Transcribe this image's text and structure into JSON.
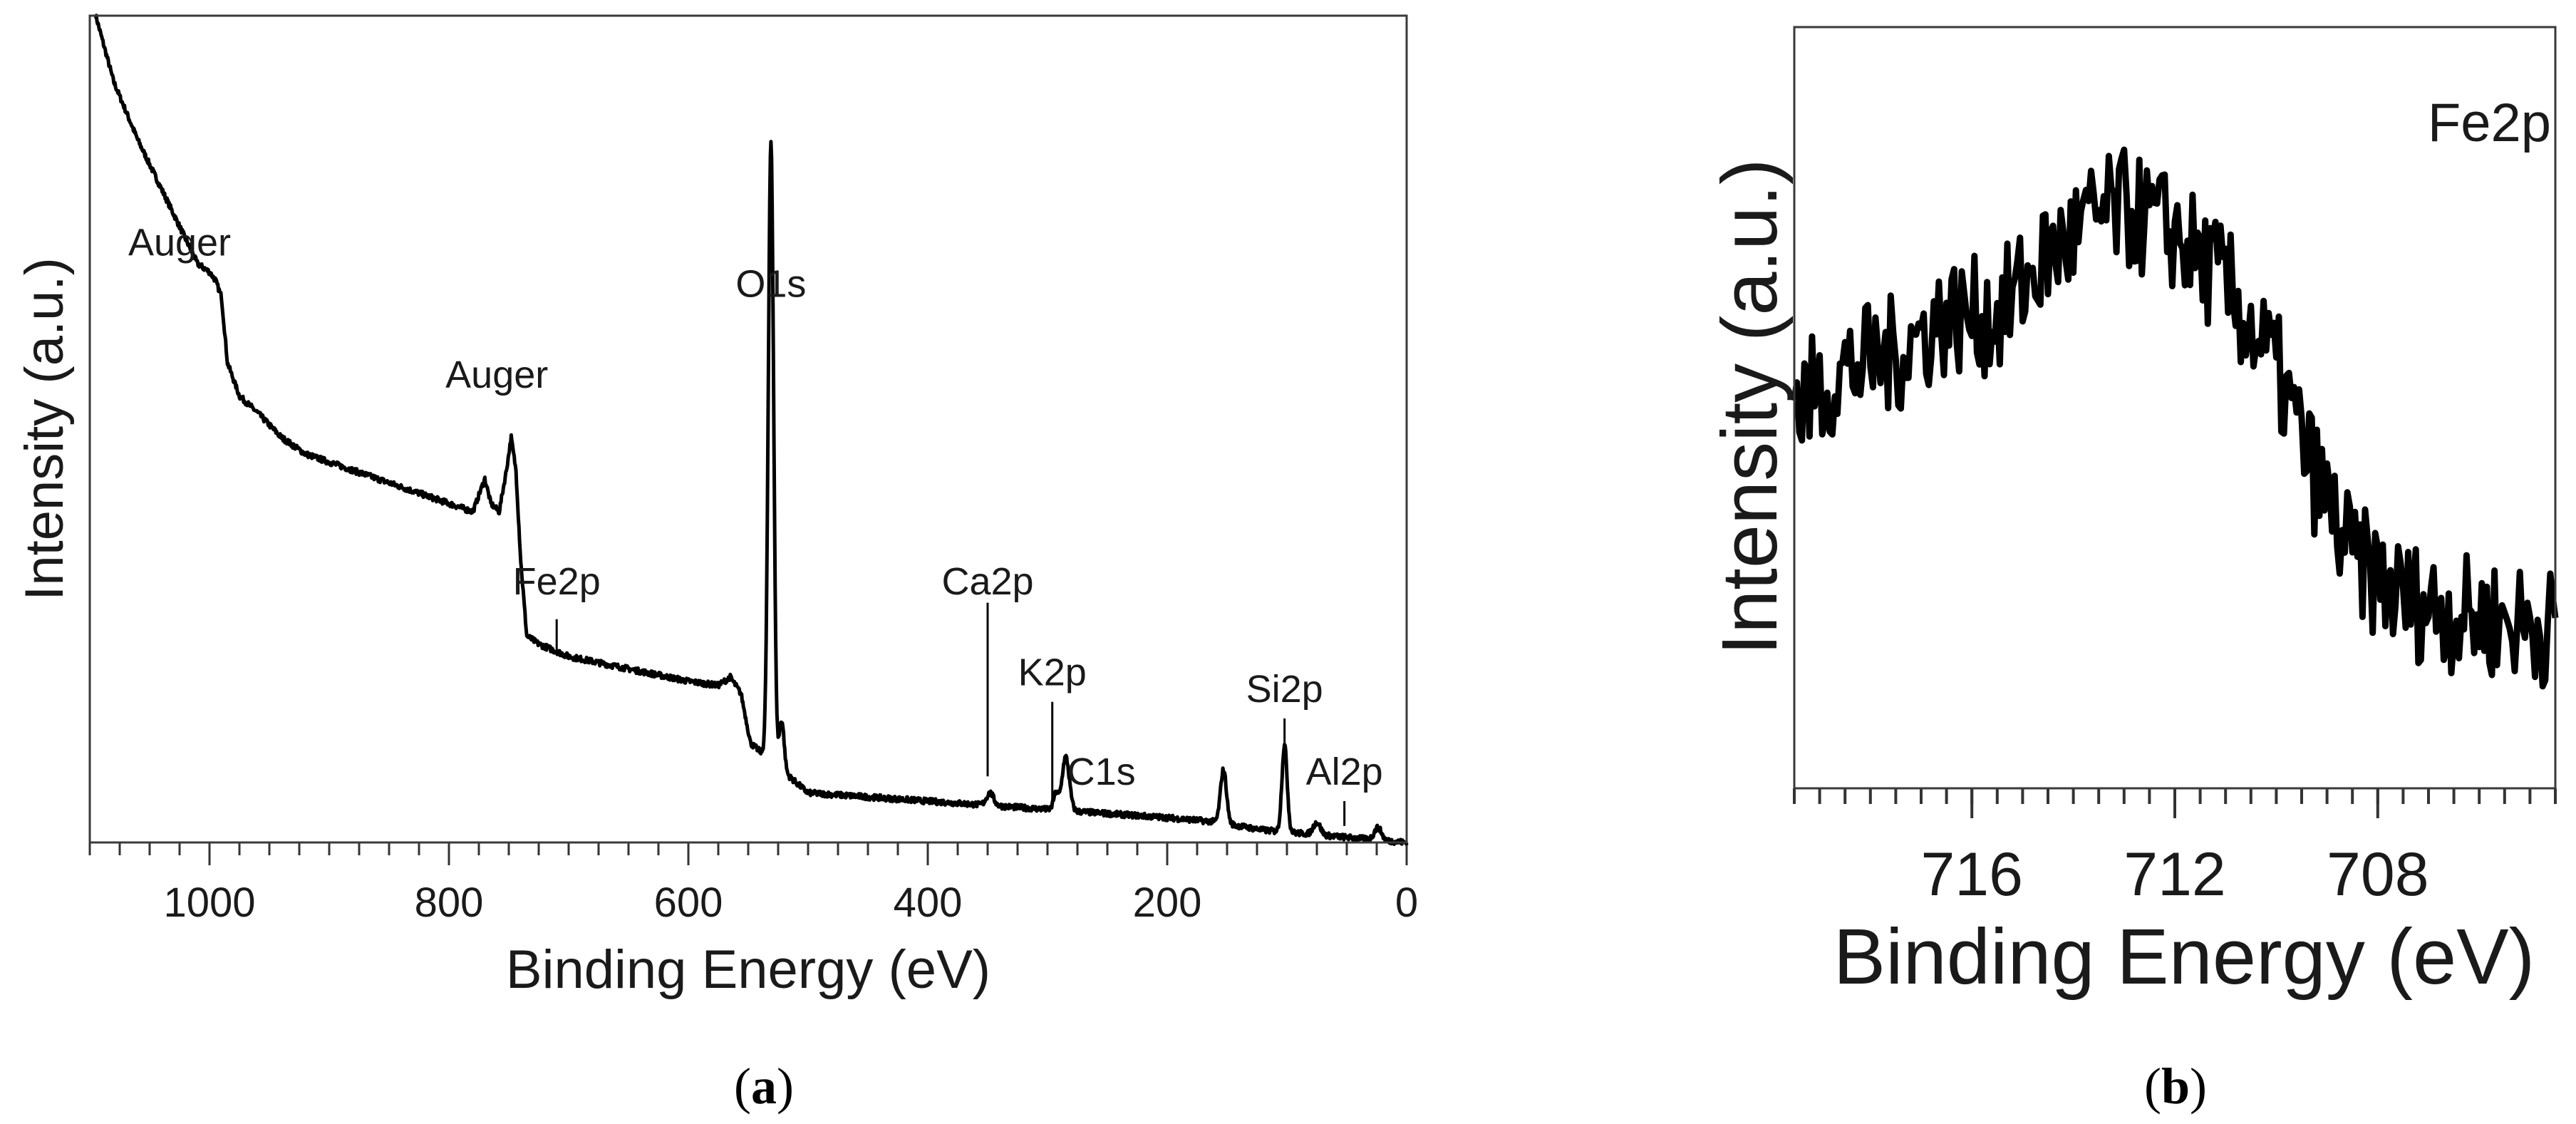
{
  "figure": {
    "caption_a": "(a)",
    "caption_b": "(b)",
    "caption_a_letter": "a",
    "caption_b_letter": "b"
  },
  "chart_data": [
    {
      "id": "a",
      "type": "line",
      "title": "",
      "xlabel": "Binding Energy (eV)",
      "ylabel": "Intensity (a.u.)",
      "xlim": [
        1100,
        0
      ],
      "ylim": [
        0,
        100
      ],
      "xticks": [
        1000,
        800,
        600,
        400,
        200,
        0
      ],
      "xtick_labels": [
        "1000",
        "800",
        "600",
        "400",
        "200",
        "0"
      ],
      "minor_xtick_step": 25,
      "baseline_points": [
        [
          1095,
          100
        ],
        [
          1080,
          92
        ],
        [
          1060,
          85
        ],
        [
          1040,
          79
        ],
        [
          1020,
          73
        ],
        [
          1010,
          70
        ],
        [
          1000,
          69
        ],
        [
          995,
          68
        ],
        [
          990,
          66
        ],
        [
          985,
          58
        ],
        [
          975,
          54
        ],
        [
          960,
          52
        ],
        [
          940,
          49
        ],
        [
          920,
          47
        ],
        [
          900,
          46
        ],
        [
          880,
          45
        ],
        [
          860,
          44
        ],
        [
          840,
          43
        ],
        [
          820,
          42
        ],
        [
          800,
          41
        ],
        [
          790,
          40.5
        ],
        [
          780,
          40
        ],
        [
          775,
          42
        ],
        [
          770,
          44
        ],
        [
          765,
          41
        ],
        [
          758,
          40
        ],
        [
          752,
          45
        ],
        [
          748,
          49
        ],
        [
          744,
          45
        ],
        [
          740,
          34
        ],
        [
          735,
          25
        ],
        [
          725,
          24
        ],
        [
          700,
          22.5
        ],
        [
          650,
          21
        ],
        [
          600,
          19.5
        ],
        [
          575,
          19
        ],
        [
          565,
          20
        ],
        [
          556,
          18
        ],
        [
          548,
          12
        ],
        [
          540,
          11
        ],
        [
          500,
          6
        ],
        [
          450,
          5.5
        ],
        [
          400,
          5
        ],
        [
          350,
          4.5
        ],
        [
          300,
          4
        ],
        [
          250,
          3.5
        ],
        [
          200,
          3
        ],
        [
          160,
          2.5
        ],
        [
          120,
          1.5
        ],
        [
          80,
          1
        ],
        [
          40,
          0.5
        ],
        [
          0,
          0
        ]
      ],
      "peaks": [
        {
          "center": 531,
          "height": 75,
          "width": 2.2
        },
        {
          "center": 522,
          "height": 6,
          "width": 2
        },
        {
          "center": 284.8,
          "height": 6.5,
          "width": 3
        },
        {
          "center": 293,
          "height": 2,
          "width": 2
        },
        {
          "center": 348,
          "height": 1.5,
          "width": 3
        },
        {
          "center": 153,
          "height": 6.5,
          "width": 2.5
        },
        {
          "center": 102,
          "height": 10.5,
          "width": 2.2
        },
        {
          "center": 75,
          "height": 1.5,
          "width": 3
        },
        {
          "center": 24,
          "height": 1.5,
          "width": 3
        }
      ],
      "noise_amplitude": 0.35,
      "annotations": [
        {
          "text": "Auger",
          "x": 1025,
          "y": 71,
          "marker": false
        },
        {
          "text": "Auger",
          "x": 760,
          "y": 55,
          "marker": false
        },
        {
          "text": "O1s",
          "x": 531,
          "y": 66,
          "marker": false
        },
        {
          "text": "Fe2p",
          "x": 710,
          "y": 30,
          "marker": true,
          "marker_from": 27,
          "marker_to": 23
        },
        {
          "text": "Ca2p",
          "x": 350,
          "y": 30,
          "marker": true,
          "marker_from": 29,
          "marker_to": 8
        },
        {
          "text": "K2p",
          "x": 296,
          "y": 19,
          "marker": true,
          "marker_from": 17,
          "marker_to": 5
        },
        {
          "text": "C1s",
          "x": 255,
          "y": 7,
          "marker": false
        },
        {
          "text": "Si2p",
          "x": 102,
          "y": 17,
          "marker": true,
          "marker_from": 15,
          "marker_to": 11
        },
        {
          "text": "Al2p",
          "x": 52,
          "y": 7,
          "marker": true,
          "marker_from": 5,
          "marker_to": 2
        }
      ]
    },
    {
      "id": "b",
      "type": "line",
      "title": "",
      "xlabel": "Binding Energy (eV)",
      "ylabel": "Intensity (a.u.)",
      "xlim": [
        719.5,
        704.5
      ],
      "ylim": [
        0,
        100
      ],
      "xticks": [
        716,
        712,
        708
      ],
      "xtick_labels": [
        "716",
        "712",
        "708"
      ],
      "minor_xtick_step": 0.5,
      "envelope_points": [
        [
          719.5,
          50
        ],
        [
          718.5,
          55
        ],
        [
          717.5,
          57
        ],
        [
          716.5,
          62
        ],
        [
          715.5,
          62
        ],
        [
          714.5,
          70
        ],
        [
          713.5,
          75
        ],
        [
          713,
          76
        ],
        [
          712,
          73
        ],
        [
          711,
          66
        ],
        [
          710,
          55
        ],
        [
          709.3,
          42
        ],
        [
          708.5,
          30
        ],
        [
          707.5,
          25
        ],
        [
          706.5,
          23
        ],
        [
          705.5,
          22
        ],
        [
          704.5,
          21
        ]
      ],
      "noise_amplitude": 8,
      "point_step": 0.05,
      "annotations": [
        {
          "text": "Fe2p",
          "x": 705.8,
          "y": 85,
          "marker": false
        }
      ]
    }
  ]
}
